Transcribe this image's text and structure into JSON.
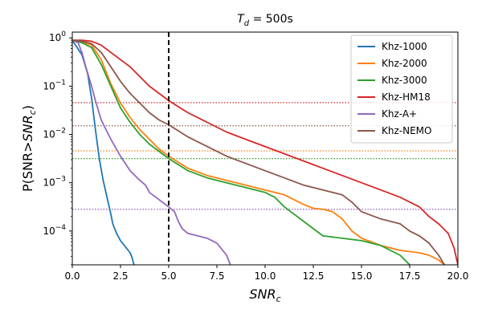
{
  "chart_data": {
    "type": "line",
    "title": "T_d = 500s",
    "title_parts": {
      "T": "T",
      "sub": "d",
      "rest": " = 500s"
    },
    "xlabel": "SNR_c",
    "xlabel_parts": {
      "main": "SNR",
      "sub": "c"
    },
    "ylabel": "P(SNR>SNR_c)",
    "ylabel_parts": {
      "main": "P(SNR>",
      "italic": "SNR",
      "sub": "c",
      "close": ")"
    },
    "xlim": [
      0,
      20
    ],
    "ylim_log10": [
      -4.7,
      0.12
    ],
    "y_scale": "log",
    "xticks": [
      0.0,
      2.5,
      5.0,
      7.5,
      10.0,
      12.5,
      15.0,
      17.5,
      20.0
    ],
    "xtick_labels": [
      "0.0",
      "2.5",
      "5.0",
      "7.5",
      "10.0",
      "12.5",
      "15.0",
      "17.5",
      "20.0"
    ],
    "yticks": [
      0,
      -1,
      -2,
      -3,
      -4
    ],
    "ytick_labels": [
      {
        "base": "10",
        "exp": "0"
      },
      {
        "base": "10",
        "exp": "−1"
      },
      {
        "base": "10",
        "exp": "−2"
      },
      {
        "base": "10",
        "exp": "−3"
      },
      {
        "base": "10",
        "exp": "−4"
      }
    ],
    "legend_position": "upper-right",
    "vline": {
      "x": 5,
      "style": "dashed",
      "color": "#000000"
    },
    "series": [
      {
        "name": "Khz-1000",
        "color": "#1f77b4",
        "x": [
          0,
          0.5,
          0.8,
          1.0,
          1.2,
          1.4,
          1.6,
          1.8,
          2.0,
          2.1,
          2.3,
          2.5,
          2.7,
          2.9,
          3.0,
          3.1,
          3.2
        ],
        "y": [
          -0.05,
          -0.35,
          -0.75,
          -1.25,
          -1.9,
          -2.5,
          -2.95,
          -3.3,
          -3.65,
          -3.85,
          -4.05,
          -4.2,
          -4.3,
          -4.4,
          -4.45,
          -4.55,
          -4.7
        ]
      },
      {
        "name": "Khz-2000",
        "color": "#ff7f0e",
        "x": [
          0,
          0.5,
          1.0,
          1.5,
          2.0,
          2.5,
          3.0,
          3.5,
          4.0,
          4.5,
          5.0,
          6.0,
          7.0,
          8.0,
          9.0,
          10.0,
          11.0,
          12.0,
          12.5,
          13.0,
          13.5,
          14.0,
          14.5,
          15.0,
          16.0,
          17.0,
          18.0,
          18.5,
          19.0,
          19.3
        ],
        "y": [
          -0.05,
          -0.08,
          -0.15,
          -0.45,
          -0.95,
          -1.35,
          -1.65,
          -1.9,
          -2.1,
          -2.3,
          -2.45,
          -2.7,
          -2.85,
          -2.95,
          -3.05,
          -3.15,
          -3.25,
          -3.45,
          -3.53,
          -3.55,
          -3.6,
          -3.75,
          -4.0,
          -4.15,
          -4.3,
          -4.4,
          -4.45,
          -4.5,
          -4.6,
          -4.7
        ]
      },
      {
        "name": "Khz-3000",
        "color": "#2ca02c",
        "x": [
          0,
          0.5,
          1.0,
          1.5,
          2.0,
          2.5,
          3.0,
          3.5,
          4.0,
          4.5,
          5.0,
          6.0,
          7.0,
          8.0,
          9.0,
          10.0,
          10.5,
          11.0,
          11.5,
          12.0,
          12.5,
          13.0,
          14.0,
          15.0,
          16.0,
          16.5,
          17.0,
          17.5
        ],
        "y": [
          -0.05,
          -0.1,
          -0.2,
          -0.55,
          -1.0,
          -1.45,
          -1.75,
          -2.0,
          -2.2,
          -2.35,
          -2.5,
          -2.75,
          -2.9,
          -3.0,
          -3.1,
          -3.2,
          -3.3,
          -3.5,
          -3.65,
          -3.8,
          -3.95,
          -4.1,
          -4.15,
          -4.2,
          -4.3,
          -4.4,
          -4.5,
          -4.7
        ]
      },
      {
        "name": "Khz-HM18",
        "color": "#d62728",
        "x": [
          0,
          0.5,
          1.0,
          1.5,
          2.0,
          2.5,
          3.0,
          3.5,
          4.0,
          4.5,
          5.0,
          6.0,
          7.0,
          8.0,
          9.0,
          10.0,
          11.0,
          12.0,
          13.0,
          14.0,
          15.0,
          16.0,
          17.0,
          18.0,
          18.5,
          19.0,
          19.5,
          19.8,
          20.0
        ],
        "y": [
          -0.05,
          -0.05,
          -0.07,
          -0.15,
          -0.3,
          -0.45,
          -0.6,
          -0.8,
          -1.0,
          -1.15,
          -1.3,
          -1.55,
          -1.75,
          -1.95,
          -2.1,
          -2.25,
          -2.4,
          -2.55,
          -2.7,
          -2.85,
          -3.0,
          -3.15,
          -3.3,
          -3.5,
          -3.7,
          -3.85,
          -4.05,
          -4.35,
          -4.7
        ]
      },
      {
        "name": "Khz-A+",
        "color": "#9467bd",
        "x": [
          0,
          0.3,
          0.5,
          0.7,
          1.0,
          1.2,
          1.5,
          2.0,
          2.5,
          3.0,
          3.5,
          3.8,
          4.0,
          4.5,
          5.0,
          5.3,
          5.5,
          5.7,
          6.0,
          6.5,
          7.0,
          7.5,
          7.8,
          8.0,
          8.2
        ],
        "y": [
          -0.05,
          -0.1,
          -0.3,
          -0.6,
          -1.0,
          -1.3,
          -1.7,
          -2.1,
          -2.45,
          -2.75,
          -2.95,
          -3.05,
          -3.2,
          -3.35,
          -3.5,
          -3.6,
          -3.8,
          -3.95,
          -4.05,
          -4.1,
          -4.15,
          -4.25,
          -4.4,
          -4.5,
          -4.7
        ]
      },
      {
        "name": "Khz-NEMO",
        "color": "#8c564b",
        "x": [
          0,
          0.5,
          1.0,
          1.5,
          2.0,
          2.5,
          3.0,
          3.5,
          4.0,
          4.5,
          5.0,
          6.0,
          7.0,
          8.0,
          9.0,
          10.0,
          11.0,
          12.0,
          13.0,
          14.0,
          14.5,
          15.0,
          16.0,
          17.0,
          17.5,
          18.0,
          18.5,
          19.0,
          19.3
        ],
        "y": [
          -0.05,
          -0.07,
          -0.12,
          -0.3,
          -0.6,
          -0.9,
          -1.15,
          -1.35,
          -1.55,
          -1.7,
          -1.8,
          -2.05,
          -2.25,
          -2.45,
          -2.6,
          -2.75,
          -2.9,
          -3.05,
          -3.15,
          -3.25,
          -3.4,
          -3.6,
          -3.75,
          -3.85,
          -4.0,
          -4.1,
          -4.25,
          -4.5,
          -4.7
        ]
      }
    ],
    "hlines": [
      {
        "series": "Khz-HM18",
        "y_log10": -1.34
      },
      {
        "series": "Khz-NEMO",
        "y_log10": -1.82
      },
      {
        "series": "Khz-2000",
        "y_log10": -2.34
      },
      {
        "series": "Khz-3000",
        "y_log10": -2.5
      },
      {
        "series": "Khz-A+",
        "y_log10": -3.55
      }
    ]
  }
}
